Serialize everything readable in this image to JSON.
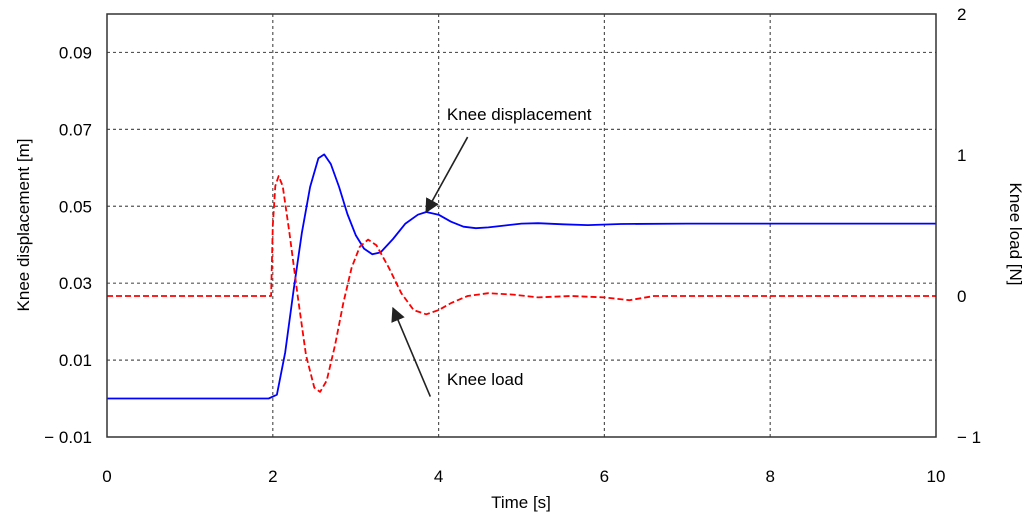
{
  "chart_data": {
    "type": "line",
    "xlabel": "Time [s]",
    "ylabel_left": "Knee displacement [m]",
    "ylabel_right": "Knee load [N]",
    "xlim": [
      0,
      10
    ],
    "ylim_left": [
      -0.01,
      0.1
    ],
    "ylim_right": [
      -1,
      2
    ],
    "x_ticks": [
      0,
      2,
      4,
      6,
      8,
      10
    ],
    "y_left_ticks": [
      -0.01,
      0.01,
      0.03,
      0.05,
      0.07,
      0.09
    ],
    "y_left_tick_labels": [
      "− 0.01",
      "0.01",
      "0.03",
      "0.05",
      "0.07",
      "0.09"
    ],
    "y_right_ticks": [
      -1,
      0,
      1,
      2
    ],
    "y_right_tick_labels": [
      "− 1",
      "0",
      "1",
      "2"
    ],
    "grid": true,
    "series": [
      {
        "axis": "left",
        "color": "#0000ff",
        "style": "solid",
        "points": [
          [
            0,
            0
          ],
          [
            1.85,
            0
          ],
          [
            1.95,
            0
          ],
          [
            2.05,
            0.001
          ],
          [
            2.15,
            0.012
          ],
          [
            2.25,
            0.028
          ],
          [
            2.35,
            0.043
          ],
          [
            2.45,
            0.055
          ],
          [
            2.55,
            0.0625
          ],
          [
            2.62,
            0.0635
          ],
          [
            2.7,
            0.061
          ],
          [
            2.8,
            0.055
          ],
          [
            2.9,
            0.048
          ],
          [
            3.0,
            0.0425
          ],
          [
            3.1,
            0.039
          ],
          [
            3.2,
            0.0375
          ],
          [
            3.3,
            0.038
          ],
          [
            3.45,
            0.0415
          ],
          [
            3.6,
            0.0455
          ],
          [
            3.75,
            0.0478
          ],
          [
            3.85,
            0.0485
          ],
          [
            4.0,
            0.0478
          ],
          [
            4.15,
            0.046
          ],
          [
            4.3,
            0.0447
          ],
          [
            4.45,
            0.0443
          ],
          [
            4.6,
            0.0445
          ],
          [
            4.8,
            0.045
          ],
          [
            5.0,
            0.0455
          ],
          [
            5.2,
            0.0456
          ],
          [
            5.5,
            0.0453
          ],
          [
            5.8,
            0.0451
          ],
          [
            6.2,
            0.0454
          ],
          [
            7.0,
            0.0455
          ],
          [
            8.0,
            0.0455
          ],
          [
            9.0,
            0.0455
          ],
          [
            10.0,
            0.0455
          ]
        ]
      },
      {
        "axis": "right",
        "color": "#ff0000",
        "style": "dashed",
        "points": [
          [
            0,
            0
          ],
          [
            1.9,
            0
          ],
          [
            1.98,
            0
          ],
          [
            2.0,
            0.5
          ],
          [
            2.03,
            0.78
          ],
          [
            2.07,
            0.85
          ],
          [
            2.12,
            0.78
          ],
          [
            2.2,
            0.45
          ],
          [
            2.3,
            0.0
          ],
          [
            2.4,
            -0.42
          ],
          [
            2.5,
            -0.65
          ],
          [
            2.57,
            -0.68
          ],
          [
            2.65,
            -0.6
          ],
          [
            2.75,
            -0.35
          ],
          [
            2.85,
            -0.05
          ],
          [
            2.95,
            0.2
          ],
          [
            3.05,
            0.35
          ],
          [
            3.15,
            0.4
          ],
          [
            3.25,
            0.36
          ],
          [
            3.4,
            0.2
          ],
          [
            3.55,
            0.02
          ],
          [
            3.7,
            -0.1
          ],
          [
            3.85,
            -0.13
          ],
          [
            4.0,
            -0.1
          ],
          [
            4.15,
            -0.05
          ],
          [
            4.35,
            0.0
          ],
          [
            4.6,
            0.02
          ],
          [
            4.9,
            0.01
          ],
          [
            5.2,
            -0.01
          ],
          [
            5.6,
            0.0
          ],
          [
            6.0,
            -0.01
          ],
          [
            6.3,
            -0.03
          ],
          [
            6.6,
            0.0
          ],
          [
            7.0,
            0.0
          ],
          [
            8.0,
            0.0
          ],
          [
            9.0,
            0.0
          ],
          [
            10.0,
            0.0
          ]
        ]
      }
    ],
    "annotations": [
      {
        "text": "Knee displacement",
        "text_x": 4.1,
        "text_y": 0.0725,
        "tip_x": 3.85,
        "tip_y": 0.0485,
        "tail_x": 4.35,
        "tail_y": 0.068,
        "axis": "left"
      },
      {
        "text": "Knee load",
        "text_x": 4.1,
        "text_y": 0.0035,
        "tip_x": 3.45,
        "tip_y": 0.0235,
        "tail_x": 3.9,
        "tail_y": 0.0005,
        "axis": "left"
      }
    ]
  }
}
